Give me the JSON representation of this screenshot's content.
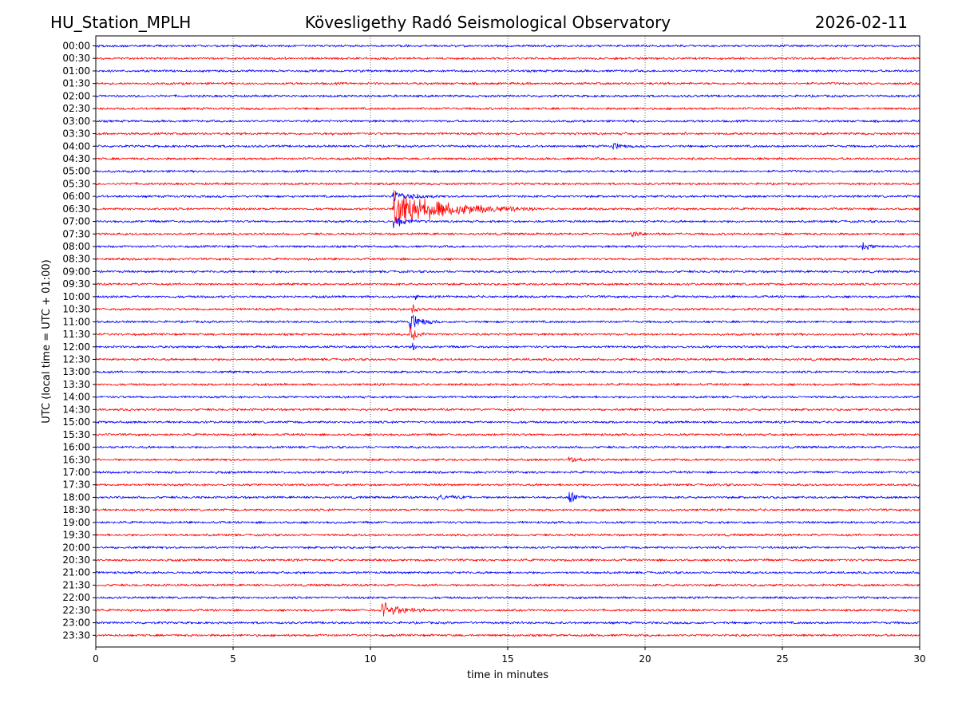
{
  "header": {
    "station": "HU_Station_MPLH",
    "observatory": "Kövesligethy Radó Seismological Observatory",
    "date": "2026-02-11"
  },
  "chart_data": {
    "type": "line",
    "subtype": "helicorder",
    "title": "Kövesligethy Radó Seismological Observatory",
    "xlabel": "time in minutes",
    "ylabel": "UTC (local time = UTC + 01:00)",
    "xlim": [
      0,
      30
    ],
    "xticks": [
      0,
      5,
      10,
      15,
      20,
      25,
      30
    ],
    "grid": "vertical dotted lines at each x tick",
    "series_colors": [
      "#0000ff",
      "#ff0000"
    ],
    "trace_labels": [
      "00:00",
      "00:30",
      "01:00",
      "01:30",
      "02:00",
      "02:30",
      "03:00",
      "03:30",
      "04:00",
      "04:30",
      "05:00",
      "05:30",
      "06:00",
      "06:30",
      "07:00",
      "07:30",
      "08:00",
      "08:30",
      "09:00",
      "09:30",
      "10:00",
      "10:30",
      "11:00",
      "11:30",
      "12:00",
      "12:30",
      "13:00",
      "13:30",
      "14:00",
      "14:30",
      "15:00",
      "15:30",
      "16:00",
      "16:30",
      "17:00",
      "17:30",
      "18:00",
      "18:30",
      "19:00",
      "19:30",
      "20:00",
      "20:30",
      "21:00",
      "21:30",
      "22:00",
      "22:30",
      "23:00",
      "23:30"
    ],
    "base_noise_amplitude": 1.4,
    "events": [
      {
        "trace": "03:30",
        "start_min": 8.6,
        "end_min": 8.7,
        "amplitude": 3
      },
      {
        "trace": "03:30",
        "start_min": 21.3,
        "end_min": 21.6,
        "amplitude": 4
      },
      {
        "trace": "04:00",
        "start_min": 18.8,
        "end_min": 19.6,
        "amplitude": 6
      },
      {
        "trace": "06:00",
        "start_min": 10.8,
        "end_min": 12.5,
        "amplitude": 12
      },
      {
        "trace": "06:30",
        "start_min": 10.8,
        "end_min": 16.0,
        "amplitude": 30
      },
      {
        "trace": "07:00",
        "start_min": 10.8,
        "end_min": 12.0,
        "amplitude": 10
      },
      {
        "trace": "07:30",
        "start_min": 19.5,
        "end_min": 20.8,
        "amplitude": 4
      },
      {
        "trace": "08:00",
        "start_min": 27.9,
        "end_min": 28.6,
        "amplitude": 6
      },
      {
        "trace": "10:00",
        "start_min": 11.6,
        "end_min": 11.8,
        "amplitude": 8
      },
      {
        "trace": "10:30",
        "start_min": 11.5,
        "end_min": 11.8,
        "amplitude": 12
      },
      {
        "trace": "11:00",
        "start_min": 11.4,
        "end_min": 12.4,
        "amplitude": 16
      },
      {
        "trace": "11:30",
        "start_min": 11.4,
        "end_min": 12.2,
        "amplitude": 14
      },
      {
        "trace": "12:00",
        "start_min": 11.5,
        "end_min": 11.8,
        "amplitude": 10
      },
      {
        "trace": "16:30",
        "start_min": 17.2,
        "end_min": 18.2,
        "amplitude": 5
      },
      {
        "trace": "18:00",
        "start_min": 12.4,
        "end_min": 13.8,
        "amplitude": 5
      },
      {
        "trace": "18:00",
        "start_min": 17.2,
        "end_min": 17.8,
        "amplitude": 14
      },
      {
        "trace": "22:30",
        "start_min": 10.4,
        "end_min": 12.5,
        "amplitude": 12
      }
    ]
  }
}
